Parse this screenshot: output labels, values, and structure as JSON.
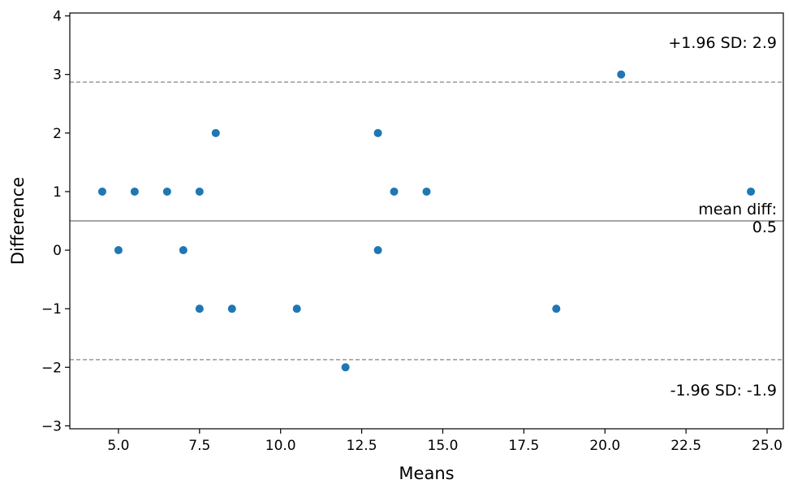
{
  "chart_data": {
    "type": "scatter",
    "title": "",
    "xlabel": "Means",
    "ylabel": "Difference",
    "xlim": [
      3.5,
      25.5
    ],
    "ylim": [
      -3.05,
      4.05
    ],
    "xticks": [
      5.0,
      7.5,
      10.0,
      12.5,
      15.0,
      17.5,
      20.0,
      22.5,
      25.0
    ],
    "xtick_labels": [
      "5.0",
      "7.5",
      "10.0",
      "12.5",
      "15.0",
      "17.5",
      "20.0",
      "22.5",
      "25.0"
    ],
    "yticks": [
      -3,
      -2,
      -1,
      0,
      1,
      2,
      3,
      4
    ],
    "ytick_labels": [
      "−3",
      "−2",
      "−1",
      "0",
      "1",
      "2",
      "3",
      "4"
    ],
    "grid": false,
    "point_color": "#1f77b4",
    "points": [
      {
        "x": 4.5,
        "y": 1
      },
      {
        "x": 5.0,
        "y": 0
      },
      {
        "x": 5.5,
        "y": 1
      },
      {
        "x": 6.5,
        "y": 1
      },
      {
        "x": 7.0,
        "y": 0
      },
      {
        "x": 7.5,
        "y": 1
      },
      {
        "x": 7.5,
        "y": -1
      },
      {
        "x": 8.0,
        "y": 2
      },
      {
        "x": 8.5,
        "y": -1
      },
      {
        "x": 10.5,
        "y": -1
      },
      {
        "x": 12.0,
        "y": -2
      },
      {
        "x": 13.0,
        "y": 2
      },
      {
        "x": 13.0,
        "y": 0
      },
      {
        "x": 13.5,
        "y": 1
      },
      {
        "x": 14.5,
        "y": 1
      },
      {
        "x": 18.5,
        "y": -1
      },
      {
        "x": 20.5,
        "y": 3
      },
      {
        "x": 24.5,
        "y": 1
      }
    ],
    "reference_lines": [
      {
        "name": "upper-limit",
        "y": 2.87,
        "style": "dashed",
        "color": "#999999",
        "label_lines": [
          "+1.96 SD: 2.9"
        ]
      },
      {
        "name": "mean-difference",
        "y": 0.5,
        "style": "solid",
        "color": "#888888",
        "label_lines": [
          "mean diff:",
          "0.5"
        ]
      },
      {
        "name": "lower-limit",
        "y": -1.87,
        "style": "dashed",
        "color": "#999999",
        "label_lines": [
          "-1.96 SD: -1.9"
        ]
      }
    ]
  }
}
